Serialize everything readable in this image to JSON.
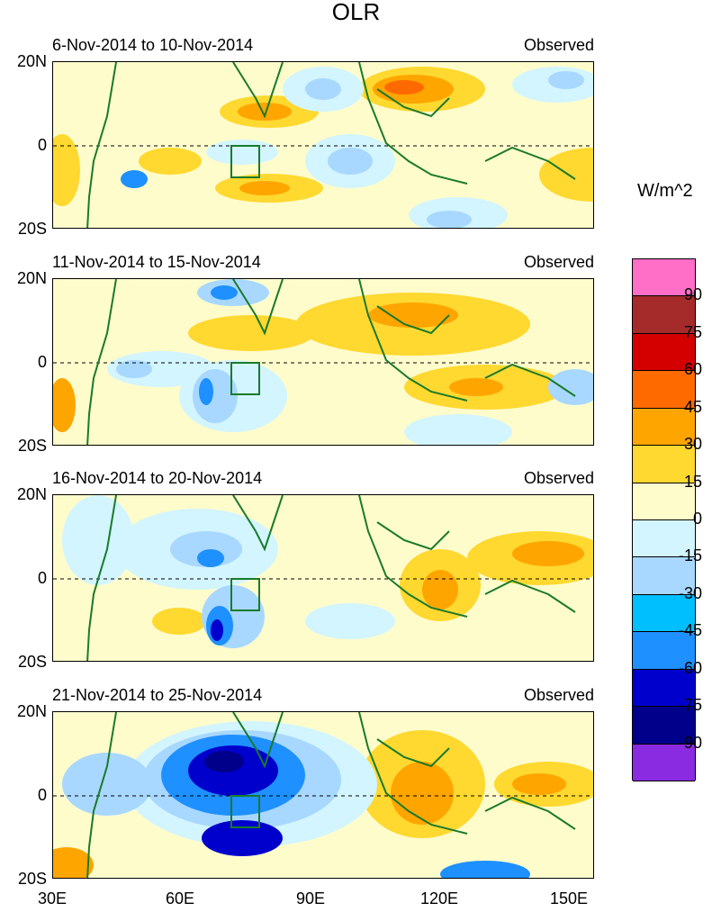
{
  "title": "OLR",
  "units": "W/m^2",
  "panels": [
    {
      "label": "6-Nov-2014 to 10-Nov-2014",
      "tag": "Observed"
    },
    {
      "label": "11-Nov-2014 to 15-Nov-2014",
      "tag": "Observed"
    },
    {
      "label": "16-Nov-2014 to 20-Nov-2014",
      "tag": "Observed"
    },
    {
      "label": "21-Nov-2014 to 25-Nov-2014",
      "tag": "Observed"
    }
  ],
  "lat_labels": [
    "20N",
    "0",
    "20S"
  ],
  "lon_labels": [
    "30E",
    "60E",
    "90E",
    "120E",
    "150E"
  ],
  "colorbar": {
    "labels": [
      "90",
      "75",
      "60",
      "45",
      "30",
      "15",
      "0",
      "-15",
      "-30",
      "-45",
      "-60",
      "-75",
      "-90"
    ],
    "colors": [
      "#ff6ec7",
      "#a52a2a",
      "#d40000",
      "#ff6a00",
      "#ffa500",
      "#ffd830",
      "#fffccc",
      "#d2f5ff",
      "#a8d8ff",
      "#00bfff",
      "#1e90ff",
      "#0000cd",
      "#00008b",
      "#8a2be2"
    ]
  },
  "colors": {
    "coast": "#1a7a2a",
    "box": "#1a7a2a"
  }
}
